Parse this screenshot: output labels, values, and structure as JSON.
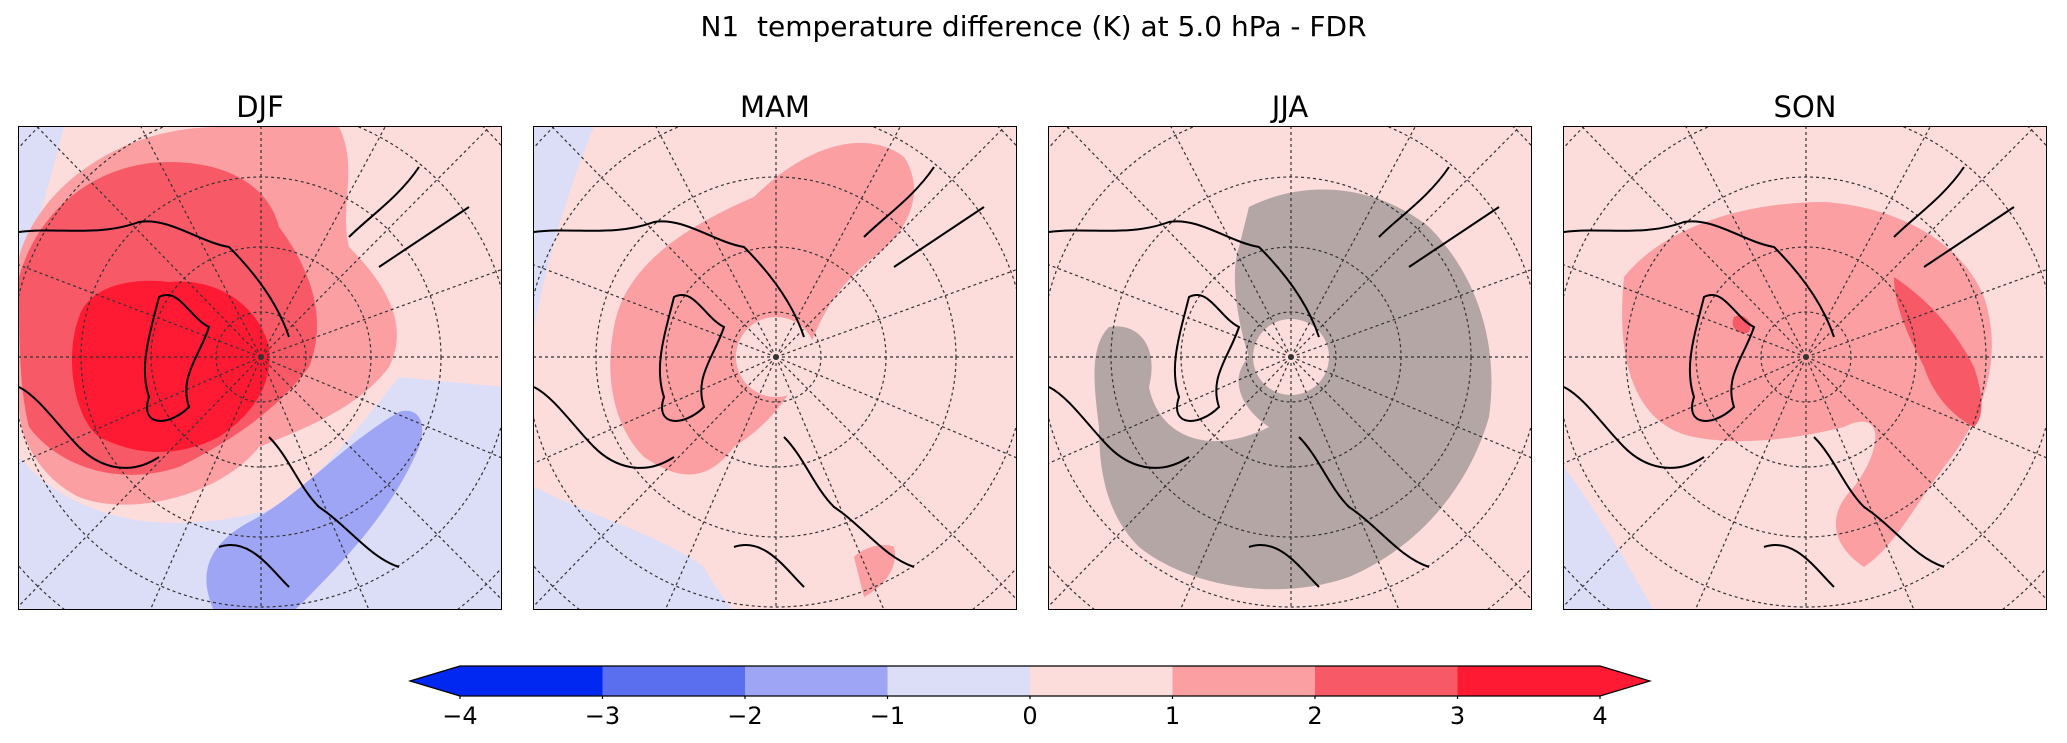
{
  "chart_data": {
    "type": "contourf-map",
    "title": "N1  temperature difference (K) at 5.0 hPa - FDR",
    "projection": "north polar stereographic",
    "panels": [
      {
        "season": "DJF",
        "summary": "positive anomaly 2-4 K centered over Canada/Greenland, negative -1 to -2 K over Europe/Russia"
      },
      {
        "season": "MAM",
        "summary": "positive 1-2 K over North America and Arctic, weak 0-1 K elsewhere"
      },
      {
        "season": "JJA",
        "summary": "masked (grey) region over most of the hemisphere, 0-1 K elsewhere"
      },
      {
        "season": "SON",
        "summary": "positive 1-2 K band across Arctic and Siberia, local 2-3 K maxima"
      }
    ],
    "colorbar": {
      "levels": [
        -4,
        -3,
        -2,
        -1,
        0,
        1,
        2,
        3,
        4
      ],
      "tick_labels": [
        "−4",
        "−3",
        "−2",
        "−1",
        "0",
        "1",
        "2",
        "3",
        "4"
      ],
      "colors": [
        "#0028f0",
        "#5a6ef0",
        "#9ea5f5",
        "#dcdef8",
        "#fddcdc",
        "#fb9fa2",
        "#f75a66",
        "#ff1a34"
      ],
      "extend": "both",
      "below_color": "#0028f0",
      "above_color": "#ff1a34"
    },
    "mask_color": "#a89c9c"
  }
}
